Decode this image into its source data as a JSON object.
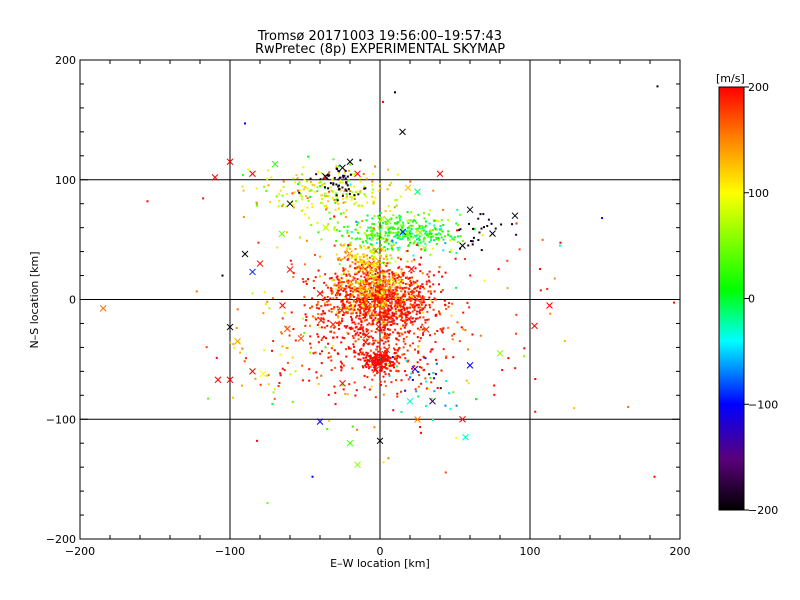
{
  "chart_data": {
    "type": "scatter",
    "title": "Tromsø 20171003 19:56:00–19:57:43",
    "subtitle": "RwPretec (8p) EXPERIMENTAL SKYMAP",
    "xlabel": "E–W location [km]",
    "ylabel": "N–S location [km]",
    "xlim": [
      -200,
      200
    ],
    "ylim": [
      -200,
      200
    ],
    "x_ticks": [
      -200,
      -100,
      0,
      100,
      200
    ],
    "y_ticks": [
      -200,
      -100,
      0,
      100,
      200
    ],
    "x_tick_labels": [
      "−200",
      "−100",
      "0",
      "100",
      "200"
    ],
    "y_tick_labels": [
      "−200",
      "−100",
      "0",
      "100",
      "200"
    ],
    "grid": true,
    "colorbar": {
      "label": "[m/s]",
      "range": [
        -200,
        200
      ],
      "ticks": [
        200,
        100,
        0,
        -100,
        -200
      ],
      "tick_labels": [
        "200",
        "100",
        "0",
        "−100",
        "−200"
      ],
      "colors": [
        "#000000",
        "#5a007a",
        "#0000ff",
        "#00ffff",
        "#00ff00",
        "#ffff00",
        "#ff8000",
        "#ff0000"
      ]
    },
    "clusters": [
      {
        "cx": 0,
        "cy": 0,
        "sx": 20,
        "sy": 15,
        "n": 900,
        "v": 190,
        "vs": 15
      },
      {
        "cx": -5,
        "cy": 10,
        "sx": 12,
        "sy": 10,
        "n": 300,
        "v": 140,
        "vs": 40
      },
      {
        "cx": 0,
        "cy": -35,
        "sx": 25,
        "sy": 20,
        "n": 350,
        "v": 190,
        "vs": 12
      },
      {
        "cx": 0,
        "cy": -52,
        "sx": 6,
        "sy": 5,
        "n": 140,
        "v": 200,
        "vs": 5
      },
      {
        "cx": 15,
        "cy": 55,
        "sx": 20,
        "sy": 7,
        "n": 350,
        "v": 20,
        "vs": 35
      },
      {
        "cx": -10,
        "cy": 35,
        "sx": 12,
        "sy": 6,
        "n": 120,
        "v": 120,
        "vs": 30
      },
      {
        "cx": -30,
        "cy": 88,
        "sx": 25,
        "sy": 12,
        "n": 220,
        "v": 90,
        "vs": 40
      },
      {
        "cx": -25,
        "cy": 98,
        "sx": 8,
        "sy": 6,
        "n": 50,
        "v": -190,
        "vs": 10
      },
      {
        "cx": 70,
        "cy": 55,
        "sx": 10,
        "sy": 8,
        "n": 25,
        "v": -190,
        "vs": 10
      },
      {
        "cx": 0,
        "cy": -20,
        "sx": 60,
        "sy": 50,
        "n": 180,
        "v": 160,
        "vs": 60
      },
      {
        "cx": 30,
        "cy": -70,
        "sx": 12,
        "sy": 15,
        "n": 30,
        "v": -60,
        "vs": 50
      },
      {
        "cx": -70,
        "cy": -40,
        "sx": 20,
        "sy": 25,
        "n": 40,
        "v": 130,
        "vs": 50
      }
    ],
    "crosses": [
      {
        "x": -100,
        "y": 115,
        "v": 200
      },
      {
        "x": -110,
        "y": 102,
        "v": 200
      },
      {
        "x": -85,
        "y": 105,
        "v": 200
      },
      {
        "x": -70,
        "y": 113,
        "v": 20
      },
      {
        "x": -20,
        "y": 115,
        "v": -200
      },
      {
        "x": -25,
        "y": 110,
        "v": -200
      },
      {
        "x": -15,
        "y": 105,
        "v": 200
      },
      {
        "x": 15,
        "y": 140,
        "v": -200
      },
      {
        "x": 40,
        "y": 105,
        "v": 200
      },
      {
        "x": 90,
        "y": 70,
        "v": -200
      },
      {
        "x": 60,
        "y": 75,
        "v": -200
      },
      {
        "x": 75,
        "y": 55,
        "v": -200
      },
      {
        "x": 55,
        "y": 45,
        "v": -200
      },
      {
        "x": -60,
        "y": 80,
        "v": -200
      },
      {
        "x": -90,
        "y": 38,
        "v": -200
      },
      {
        "x": -80,
        "y": 30,
        "v": 200
      },
      {
        "x": -100,
        "y": -23,
        "v": -200
      },
      {
        "x": -95,
        "y": -35,
        "v": 140
      },
      {
        "x": -100,
        "y": -67,
        "v": 200
      },
      {
        "x": -108,
        "y": -67,
        "v": 200
      },
      {
        "x": -85,
        "y": -60,
        "v": 200
      },
      {
        "x": -78,
        "y": -62,
        "v": 100
      },
      {
        "x": -40,
        "y": -102,
        "v": -100
      },
      {
        "x": -20,
        "y": -120,
        "v": 30
      },
      {
        "x": 0,
        "y": -118,
        "v": -200
      },
      {
        "x": 55,
        "y": -100,
        "v": 200
      },
      {
        "x": 57,
        "y": -115,
        "v": -30
      },
      {
        "x": 35,
        "y": -85,
        "v": -170
      },
      {
        "x": 20,
        "y": -85,
        "v": -30
      },
      {
        "x": 60,
        "y": -55,
        "v": -100
      },
      {
        "x": 80,
        "y": -45,
        "v": 60
      },
      {
        "x": 113,
        "y": -5,
        "v": 200
      },
      {
        "x": 103,
        "y": -22,
        "v": 200
      },
      {
        "x": -85,
        "y": 23,
        "v": -90
      },
      {
        "x": -60,
        "y": 25,
        "v": 200
      },
      {
        "x": -40,
        "y": 5,
        "v": 200
      },
      {
        "x": -65,
        "y": -5,
        "v": 200
      },
      {
        "x": -25,
        "y": -70,
        "v": 200
      },
      {
        "x": -15,
        "y": -138,
        "v": 60
      },
      {
        "x": 25,
        "y": 90,
        "v": -10
      }
    ],
    "outliers": [
      {
        "x": 185,
        "y": 178,
        "v": -200
      },
      {
        "x": 10,
        "y": 173,
        "v": -200
      },
      {
        "x": 2,
        "y": 165,
        "v": 200
      },
      {
        "x": -90,
        "y": 147,
        "v": -100
      },
      {
        "x": -155,
        "y": 82,
        "v": 200
      },
      {
        "x": 148,
        "y": 68,
        "v": -100
      },
      {
        "x": 120,
        "y": 45,
        "v": -30
      },
      {
        "x": -105,
        "y": 20,
        "v": -200
      },
      {
        "x": 183,
        "y": -148,
        "v": 200
      },
      {
        "x": -75,
        "y": -170,
        "v": 50
      },
      {
        "x": -45,
        "y": -148,
        "v": -100
      }
    ]
  }
}
